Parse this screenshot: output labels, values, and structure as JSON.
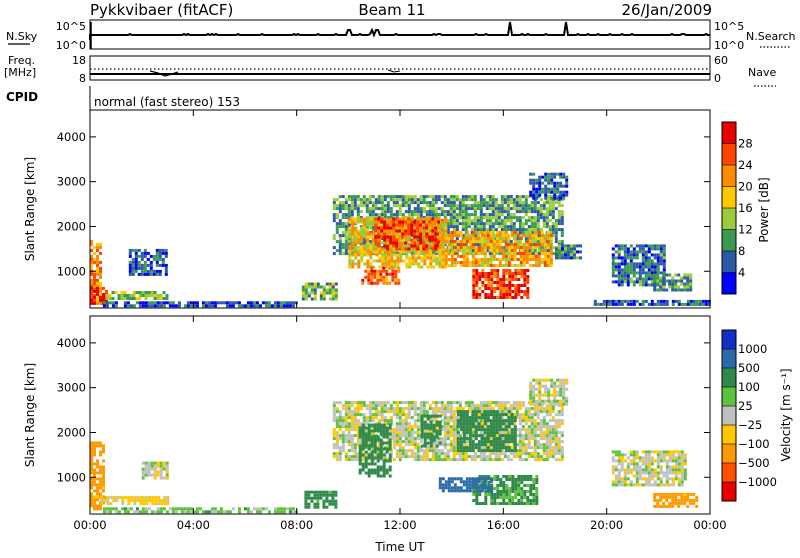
{
  "header": {
    "station": "Pykkvibaer (fitACF)",
    "beam": "Beam 11",
    "date": "26/Jan/2009"
  },
  "strip": {
    "nsky_label": "N.Sky",
    "nsky_ticks": [
      "10^5",
      "10^0"
    ],
    "nsearch_label": "N.Search",
    "nsearch_ticks": [
      "10^5",
      "10^0"
    ],
    "freq_label": "Freq.",
    "freq_unit": "[MHz]",
    "freq_ticks": [
      "18",
      "8"
    ],
    "nave_label": "Nave",
    "nave_ticks": [
      "60",
      "0"
    ],
    "cpid_label": "CPID",
    "cpid_text": "normal (fast stereo) 153"
  },
  "axes": {
    "ylabel": "Slant Range [km]",
    "yticks": [
      "4000",
      "3000",
      "2000",
      "1000"
    ],
    "xlabel": "Time UT",
    "xticks": [
      "00:00",
      "04:00",
      "08:00",
      "12:00",
      "16:00",
      "20:00",
      "00:00"
    ]
  },
  "power_scale": {
    "label": "Power [dB]",
    "ticks": [
      "28",
      "24",
      "20",
      "16",
      "12",
      "8",
      "4"
    ],
    "colors": [
      "#e60000",
      "#ff4500",
      "#ff8c00",
      "#ffc800",
      "#9ccc3c",
      "#3a9a50",
      "#2c5aa8",
      "#0000ff"
    ]
  },
  "velocity_scale": {
    "label": "Velocity [m s⁻¹]",
    "ticks": [
      "1000",
      "500",
      "100",
      "25",
      "−25",
      "−100",
      "−500",
      "−1000"
    ],
    "colors": [
      "#1030c8",
      "#2b6aa8",
      "#2f8a4a",
      "#5ec23c",
      "#c0c0c0",
      "#ffc800",
      "#ff9900",
      "#ff5000",
      "#e60000"
    ]
  },
  "chart_data": [
    {
      "type": "heatmap",
      "name": "Power",
      "x_range_hours": [
        0,
        24
      ],
      "y_range_km": [
        180,
        4600
      ],
      "regions": [
        {
          "t": [
            0.0,
            0.4
          ],
          "r": [
            300,
            1700
          ],
          "v": 22
        },
        {
          "t": [
            0.0,
            0.6
          ],
          "r": [
            300,
            650
          ],
          "v": 28
        },
        {
          "t": [
            0.6,
            3.0
          ],
          "r": [
            380,
            560
          ],
          "v": 14
        },
        {
          "t": [
            1.5,
            3.0
          ],
          "r": [
            900,
            1500
          ],
          "v": 6
        },
        {
          "t": [
            0.5,
            8.0
          ],
          "r": [
            250,
            330
          ],
          "v": 5
        },
        {
          "t": [
            8.2,
            9.5
          ],
          "r": [
            350,
            750
          ],
          "v": 12
        },
        {
          "t": [
            9.4,
            18.3
          ],
          "r": [
            1400,
            2700
          ],
          "v": 10
        },
        {
          "t": [
            10.0,
            13.8
          ],
          "r": [
            1100,
            2200
          ],
          "v": 18
        },
        {
          "t": [
            11.0,
            13.5
          ],
          "r": [
            1500,
            2200
          ],
          "v": 26
        },
        {
          "t": [
            13.5,
            17.8
          ],
          "r": [
            1100,
            1900
          ],
          "v": 20
        },
        {
          "t": [
            14.8,
            17.0
          ],
          "r": [
            400,
            1050
          ],
          "v": 27
        },
        {
          "t": [
            10.5,
            12.0
          ],
          "r": [
            700,
            1100
          ],
          "v": 24
        },
        {
          "t": [
            17.0,
            18.5
          ],
          "r": [
            2600,
            3200
          ],
          "v": 6
        },
        {
          "t": [
            18.0,
            19.0
          ],
          "r": [
            1300,
            1600
          ],
          "v": 8
        },
        {
          "t": [
            20.2,
            22.2
          ],
          "r": [
            700,
            1600
          ],
          "v": 7
        },
        {
          "t": [
            21.8,
            23.2
          ],
          "r": [
            600,
            950
          ],
          "v": 10
        },
        {
          "t": [
            19.5,
            24.0
          ],
          "r": [
            250,
            360
          ],
          "v": 6
        }
      ]
    },
    {
      "type": "heatmap",
      "name": "Velocity",
      "x_range_hours": [
        0,
        24
      ],
      "y_range_km": [
        180,
        4600
      ],
      "regions": [
        {
          "t": [
            0.0,
            0.5
          ],
          "r": [
            300,
            1800
          ],
          "v": -150
        },
        {
          "t": [
            0.4,
            3.0
          ],
          "r": [
            380,
            580
          ],
          "v": -50
        },
        {
          "t": [
            2.0,
            3.0
          ],
          "r": [
            950,
            1350
          ],
          "v": 0
        },
        {
          "t": [
            0.5,
            8.0
          ],
          "r": [
            250,
            330
          ],
          "v": 50
        },
        {
          "t": [
            8.3,
            9.5
          ],
          "r": [
            350,
            700
          ],
          "v": 150
        },
        {
          "t": [
            9.4,
            18.3
          ],
          "r": [
            1400,
            2700
          ],
          "v": 0
        },
        {
          "t": [
            10.4,
            11.6
          ],
          "r": [
            1000,
            2200
          ],
          "v": 200
        },
        {
          "t": [
            12.8,
            13.6
          ],
          "r": [
            1700,
            2400
          ],
          "v": 200
        },
        {
          "t": [
            14.2,
            16.5
          ],
          "r": [
            1600,
            2500
          ],
          "v": 250
        },
        {
          "t": [
            14.8,
            17.3
          ],
          "r": [
            400,
            1050
          ],
          "v": 120
        },
        {
          "t": [
            13.5,
            15.5
          ],
          "r": [
            700,
            1000
          ],
          "v": 700
        },
        {
          "t": [
            17.0,
            18.5
          ],
          "r": [
            2600,
            3200
          ],
          "v": 0
        },
        {
          "t": [
            20.2,
            23.0
          ],
          "r": [
            800,
            1600
          ],
          "v": 0
        },
        {
          "t": [
            21.8,
            23.5
          ],
          "r": [
            350,
            650
          ],
          "v": -150
        }
      ]
    }
  ]
}
